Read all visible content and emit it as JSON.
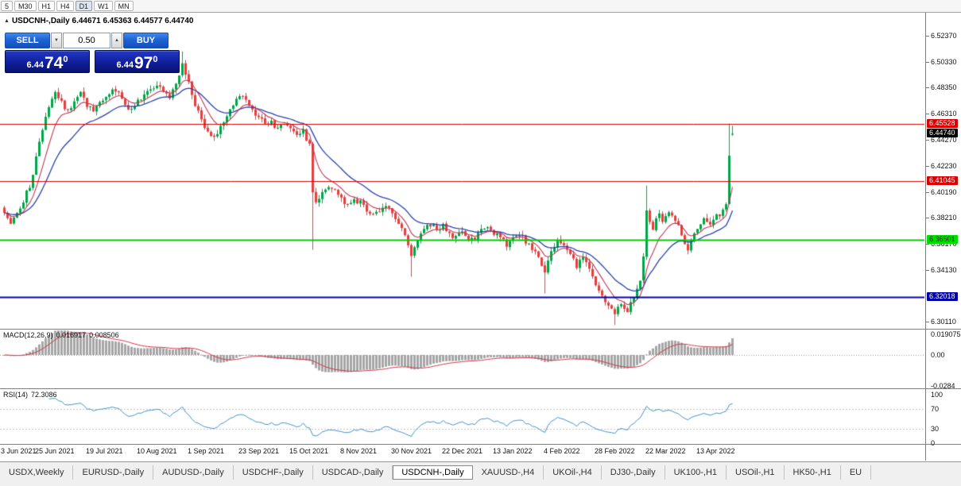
{
  "icons": {
    "collapse": "▲",
    "spinner_up": "▲",
    "spinner_down": "▼"
  },
  "toolbar": {
    "timeframes": [
      {
        "label": "5",
        "active": false
      },
      {
        "label": "M30",
        "active": false
      },
      {
        "label": "H1",
        "active": false
      },
      {
        "label": "H4",
        "active": false
      },
      {
        "label": "D1",
        "active": true
      },
      {
        "label": "W1",
        "active": false
      },
      {
        "label": "MN",
        "active": false
      }
    ]
  },
  "chart_header": {
    "symbol": "USDCNH-,Daily",
    "ohlc": "6.44671 6.45363 6.44577 6.44740"
  },
  "trade_panel": {
    "sell_label": "SELL",
    "buy_label": "BUY",
    "lot_size": "0.50",
    "sell_price": {
      "small": "6.44",
      "big": "74",
      "sup": "0"
    },
    "buy_price": {
      "small": "6.44",
      "big": "97",
      "sup": "0"
    }
  },
  "panes": {
    "macd": {
      "label": "MACD(12,26,9)",
      "value_main": "0.016917",
      "value_signal": "0.008506"
    },
    "rsi": {
      "label": "RSI(14)",
      "value": "72.3086"
    }
  },
  "tabs": [
    {
      "label": "USDX,Weekly",
      "active": false
    },
    {
      "label": "EURUSD-,Daily",
      "active": false
    },
    {
      "label": "AUDUSD-,Daily",
      "active": false
    },
    {
      "label": "USDCHF-,Daily",
      "active": false
    },
    {
      "label": "USDCAD-,Daily",
      "active": false
    },
    {
      "label": "USDCNH-,Daily",
      "active": true
    },
    {
      "label": "XAUUSD-,H4",
      "active": false
    },
    {
      "label": "UKOil-,H4",
      "active": false
    },
    {
      "label": "DJ30-,Daily",
      "active": false
    },
    {
      "label": "UK100-,H1",
      "active": false
    },
    {
      "label": "USOil-,H1",
      "active": false
    },
    {
      "label": "HK50-,H1",
      "active": false
    },
    {
      "label": "EU",
      "active": false
    }
  ],
  "chart_data": {
    "type": "candlestick",
    "symbol": "USDCNH-",
    "timeframe": "Daily",
    "current_bar": {
      "open": 6.44671,
      "high": 6.45363,
      "low": 6.44577,
      "close": 6.4474
    },
    "bars": 230,
    "y_axis": {
      "labels": [
        "6.52370",
        "6.50330",
        "6.48350",
        "6.46310",
        "6.44270",
        "6.42230",
        "6.40190",
        "6.38210",
        "6.36170",
        "6.34130",
        "6.30110"
      ]
    },
    "x_axis": {
      "labels": [
        "3 Jun 2021",
        "25 Jun 2021",
        "19 Jul 2021",
        "10 Aug 2021",
        "1 Sep 2021",
        "23 Sep 2021",
        "15 Oct 2021",
        "8 Nov 2021",
        "30 Nov 2021",
        "22 Dec 2021",
        "13 Jan 2022",
        "4 Feb 2022",
        "28 Feb 2022",
        "22 Mar 2022",
        "13 Apr 2022"
      ],
      "bars_per_label": 16
    },
    "levels": [
      {
        "label": "6.45528",
        "price": 6.45528,
        "color": "#dd0000",
        "width": 1,
        "tag_bg": "#dd0000",
        "tag_fg": "#ffffff"
      },
      {
        "label": "6.41045",
        "price": 6.41045,
        "color": "#dd0000",
        "width": 1,
        "tag_bg": "#dd0000",
        "tag_fg": "#ffffff"
      },
      {
        "label": "6.36501",
        "price": 6.36501,
        "color": "#00cc00",
        "width": 2,
        "tag_bg": "#00dd00",
        "tag_fg": "#003300"
      },
      {
        "label": "6.32018",
        "price": 6.32018,
        "color": "#0000aa",
        "width": 2,
        "tag_bg": "#0000aa",
        "tag_fg": "#ffffff"
      }
    ],
    "current_price_tag": {
      "label": "6.44740",
      "price": 6.4474,
      "bg": "#000000",
      "fg": "#ffffff"
    },
    "candle_colors": {
      "up": "#00a548",
      "down": "#e24040"
    },
    "moving_averages": [
      {
        "type": "ema",
        "period": 8,
        "color": "#c23652"
      },
      {
        "type": "ema",
        "period": 20,
        "color": "#2940b0"
      }
    ],
    "indicators": {
      "macd": {
        "fast": 12,
        "slow": 26,
        "signal": 9,
        "current_main": 0.016917,
        "current_signal": 0.008506,
        "axis_labels": [
          "0.019075",
          "0.00",
          "-0.0284"
        ],
        "histogram_color": "#a6a6a6",
        "signal_color": "#cf3545"
      },
      "rsi": {
        "period": 14,
        "current": 72.3086,
        "axis_labels": [
          "100",
          "70",
          "30",
          "0"
        ],
        "upper_level": 70,
        "lower_level": 30,
        "line_color": "#3f8fc7"
      }
    },
    "trend_anchors": [
      [
        0,
        6.388
      ],
      [
        2,
        6.379
      ],
      [
        4,
        6.384
      ],
      [
        6,
        6.396
      ],
      [
        8,
        6.406
      ],
      [
        10,
        6.428
      ],
      [
        12,
        6.45
      ],
      [
        14,
        6.468
      ],
      [
        16,
        6.478
      ],
      [
        18,
        6.472
      ],
      [
        20,
        6.465
      ],
      [
        22,
        6.472
      ],
      [
        24,
        6.478
      ],
      [
        26,
        6.47
      ],
      [
        28,
        6.466
      ],
      [
        30,
        6.472
      ],
      [
        32,
        6.477
      ],
      [
        34,
        6.482
      ],
      [
        36,
        6.48
      ],
      [
        38,
        6.47
      ],
      [
        40,
        6.466
      ],
      [
        42,
        6.472
      ],
      [
        44,
        6.477
      ],
      [
        46,
        6.482
      ],
      [
        48,
        6.487
      ],
      [
        50,
        6.48
      ],
      [
        52,
        6.476
      ],
      [
        54,
        6.486
      ],
      [
        56,
        6.503
      ],
      [
        58,
        6.488
      ],
      [
        60,
        6.47
      ],
      [
        62,
        6.458
      ],
      [
        64,
        6.45
      ],
      [
        66,
        6.443
      ],
      [
        68,
        6.452
      ],
      [
        70,
        6.462
      ],
      [
        72,
        6.47
      ],
      [
        74,
        6.477
      ],
      [
        76,
        6.472
      ],
      [
        78,
        6.466
      ],
      [
        80,
        6.46
      ],
      [
        82,
        6.455
      ],
      [
        84,
        6.458
      ],
      [
        86,
        6.45
      ],
      [
        88,
        6.456
      ],
      [
        90,
        6.452
      ],
      [
        92,
        6.448
      ],
      [
        94,
        6.45
      ],
      [
        96,
        6.438
      ],
      [
        97,
        6.4
      ],
      [
        98,
        6.392
      ],
      [
        100,
        6.4
      ],
      [
        102,
        6.408
      ],
      [
        104,
        6.402
      ],
      [
        106,
        6.396
      ],
      [
        108,
        6.392
      ],
      [
        110,
        6.396
      ],
      [
        112,
        6.394
      ],
      [
        114,
        6.388
      ],
      [
        116,
        6.383
      ],
      [
        118,
        6.387
      ],
      [
        120,
        6.392
      ],
      [
        122,
        6.384
      ],
      [
        124,
        6.376
      ],
      [
        126,
        6.37
      ],
      [
        128,
        6.352
      ],
      [
        130,
        6.366
      ],
      [
        132,
        6.374
      ],
      [
        134,
        6.377
      ],
      [
        136,
        6.372
      ],
      [
        138,
        6.376
      ],
      [
        140,
        6.37
      ],
      [
        142,
        6.366
      ],
      [
        144,
        6.37
      ],
      [
        146,
        6.363
      ],
      [
        148,
        6.366
      ],
      [
        150,
        6.372
      ],
      [
        152,
        6.375
      ],
      [
        154,
        6.37
      ],
      [
        156,
        6.366
      ],
      [
        158,
        6.361
      ],
      [
        160,
        6.366
      ],
      [
        162,
        6.37
      ],
      [
        164,
        6.363
      ],
      [
        166,
        6.357
      ],
      [
        168,
        6.352
      ],
      [
        170,
        6.341
      ],
      [
        172,
        6.356
      ],
      [
        174,
        6.364
      ],
      [
        176,
        6.359
      ],
      [
        178,
        6.352
      ],
      [
        180,
        6.345
      ],
      [
        182,
        6.351
      ],
      [
        184,
        6.342
      ],
      [
        186,
        6.331
      ],
      [
        188,
        6.32
      ],
      [
        190,
        6.313
      ],
      [
        192,
        6.307
      ],
      [
        194,
        6.314
      ],
      [
        196,
        6.309
      ],
      [
        198,
        6.32
      ],
      [
        200,
        6.333
      ],
      [
        201,
        6.352
      ],
      [
        202,
        6.388
      ],
      [
        203,
        6.379
      ],
      [
        204,
        6.373
      ],
      [
        205,
        6.382
      ],
      [
        206,
        6.386
      ],
      [
        207,
        6.379
      ],
      [
        208,
        6.383
      ],
      [
        209,
        6.387
      ],
      [
        210,
        6.384
      ],
      [
        211,
        6.38
      ],
      [
        212,
        6.376
      ],
      [
        213,
        6.369
      ],
      [
        214,
        6.361
      ],
      [
        215,
        6.357
      ],
      [
        216,
        6.364
      ],
      [
        217,
        6.37
      ],
      [
        218,
        6.374
      ],
      [
        219,
        6.377
      ],
      [
        220,
        6.381
      ],
      [
        221,
        6.379
      ],
      [
        222,
        6.376
      ],
      [
        223,
        6.38
      ],
      [
        224,
        6.385
      ],
      [
        225,
        6.383
      ],
      [
        226,
        6.388
      ],
      [
        227,
        6.392
      ],
      [
        228,
        6.43
      ],
      [
        229,
        6.4474
      ]
    ],
    "wick_events": {
      "56": {
        "high": 6.5115
      },
      "97": {
        "low": 6.357
      },
      "128": {
        "low": 6.336
      },
      "170": {
        "low": 6.323
      },
      "192": {
        "low": 6.2985
      },
      "202": {
        "high": 6.407
      },
      "228": {
        "high": 6.4553
      }
    }
  }
}
